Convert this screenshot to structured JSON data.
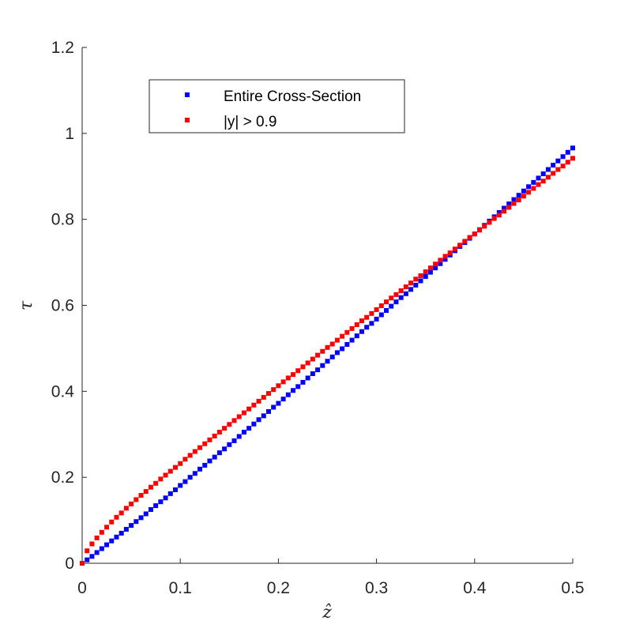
{
  "chart_data": {
    "type": "scatter",
    "title": "",
    "xlabel": "ẑ",
    "ylabel": "τ",
    "xlim": [
      0,
      0.5
    ],
    "ylim": [
      0,
      1.2
    ],
    "xticks": [
      "0",
      "0.1",
      "0.2",
      "0.3",
      "0.4",
      "0.5"
    ],
    "yticks": [
      "0",
      "0.2",
      "0.4",
      "0.6",
      "0.8",
      "1",
      "1.2"
    ],
    "x_tick_values": [
      0,
      0.1,
      0.2,
      0.3,
      0.4,
      0.5
    ],
    "y_tick_values": [
      0,
      0.2,
      0.4,
      0.6,
      0.8,
      1.0,
      1.2
    ],
    "grid": false,
    "box": "left-bottom",
    "legend_position": "top-center",
    "series": [
      {
        "name": "Entire Cross-Section",
        "color": "#0000ff",
        "marker": "square",
        "x": [
          0,
          0.005,
          0.01,
          0.015,
          0.02,
          0.025,
          0.03,
          0.035,
          0.04,
          0.045,
          0.05,
          0.055,
          0.06,
          0.065,
          0.07,
          0.075,
          0.08,
          0.085,
          0.09,
          0.095,
          0.1,
          0.105,
          0.11,
          0.115,
          0.12,
          0.125,
          0.13,
          0.135,
          0.14,
          0.145,
          0.15,
          0.155,
          0.16,
          0.165,
          0.17,
          0.175,
          0.18,
          0.185,
          0.19,
          0.195,
          0.2,
          0.205,
          0.21,
          0.215,
          0.22,
          0.225,
          0.23,
          0.235,
          0.24,
          0.245,
          0.25,
          0.255,
          0.26,
          0.265,
          0.27,
          0.275,
          0.28,
          0.285,
          0.29,
          0.295,
          0.3,
          0.305,
          0.31,
          0.315,
          0.32,
          0.325,
          0.33,
          0.335,
          0.34,
          0.345,
          0.35,
          0.355,
          0.36,
          0.365,
          0.37,
          0.375,
          0.38,
          0.385,
          0.39,
          0.395,
          0.4,
          0.405,
          0.41,
          0.415,
          0.42,
          0.425,
          0.43,
          0.435,
          0.44,
          0.445,
          0.45,
          0.455,
          0.46,
          0.465,
          0.47,
          0.475,
          0.48,
          0.485,
          0.49,
          0.495,
          0.5
        ],
        "y": [
          0,
          0.008,
          0.016,
          0.025,
          0.034,
          0.043,
          0.052,
          0.061,
          0.07,
          0.079,
          0.088,
          0.097,
          0.106,
          0.115,
          0.125,
          0.134,
          0.143,
          0.152,
          0.162,
          0.171,
          0.181,
          0.19,
          0.2,
          0.209,
          0.219,
          0.228,
          0.238,
          0.247,
          0.257,
          0.266,
          0.276,
          0.285,
          0.295,
          0.305,
          0.314,
          0.324,
          0.334,
          0.343,
          0.353,
          0.363,
          0.372,
          0.382,
          0.392,
          0.402,
          0.411,
          0.421,
          0.431,
          0.441,
          0.45,
          0.46,
          0.47,
          0.48,
          0.49,
          0.499,
          0.509,
          0.519,
          0.529,
          0.539,
          0.549,
          0.558,
          0.568,
          0.578,
          0.588,
          0.598,
          0.608,
          0.618,
          0.627,
          0.637,
          0.647,
          0.657,
          0.667,
          0.677,
          0.687,
          0.697,
          0.707,
          0.717,
          0.727,
          0.737,
          0.746,
          0.756,
          0.766,
          0.776,
          0.786,
          0.796,
          0.806,
          0.816,
          0.826,
          0.836,
          0.846,
          0.856,
          0.866,
          0.876,
          0.886,
          0.896,
          0.906,
          0.916,
          0.926,
          0.936,
          0.946,
          0.956,
          0.966
        ]
      },
      {
        "name": "|y| > 0.9",
        "color": "#ff0000",
        "marker": "square",
        "x": [
          0,
          0.005,
          0.01,
          0.015,
          0.02,
          0.025,
          0.03,
          0.035,
          0.04,
          0.045,
          0.05,
          0.055,
          0.06,
          0.065,
          0.07,
          0.075,
          0.08,
          0.085,
          0.09,
          0.095,
          0.1,
          0.105,
          0.11,
          0.115,
          0.12,
          0.125,
          0.13,
          0.135,
          0.14,
          0.145,
          0.15,
          0.155,
          0.16,
          0.165,
          0.17,
          0.175,
          0.18,
          0.185,
          0.19,
          0.195,
          0.2,
          0.205,
          0.21,
          0.215,
          0.22,
          0.225,
          0.23,
          0.235,
          0.24,
          0.245,
          0.25,
          0.255,
          0.26,
          0.265,
          0.27,
          0.275,
          0.28,
          0.285,
          0.29,
          0.295,
          0.3,
          0.305,
          0.31,
          0.315,
          0.32,
          0.325,
          0.33,
          0.335,
          0.34,
          0.345,
          0.35,
          0.355,
          0.36,
          0.365,
          0.37,
          0.375,
          0.38,
          0.385,
          0.39,
          0.395,
          0.4,
          0.405,
          0.41,
          0.415,
          0.42,
          0.425,
          0.43,
          0.435,
          0.44,
          0.445,
          0.45,
          0.455,
          0.46,
          0.465,
          0.47,
          0.475,
          0.48,
          0.485,
          0.49,
          0.495,
          0.5
        ],
        "y": [
          0,
          0.029,
          0.045,
          0.059,
          0.072,
          0.084,
          0.096,
          0.107,
          0.117,
          0.128,
          0.138,
          0.148,
          0.158,
          0.167,
          0.177,
          0.186,
          0.196,
          0.205,
          0.214,
          0.223,
          0.232,
          0.242,
          0.251,
          0.26,
          0.269,
          0.278,
          0.287,
          0.296,
          0.305,
          0.314,
          0.323,
          0.332,
          0.341,
          0.35,
          0.359,
          0.368,
          0.377,
          0.386,
          0.395,
          0.404,
          0.413,
          0.422,
          0.431,
          0.439,
          0.448,
          0.457,
          0.466,
          0.475,
          0.484,
          0.493,
          0.502,
          0.51,
          0.519,
          0.528,
          0.537,
          0.546,
          0.555,
          0.564,
          0.572,
          0.581,
          0.59,
          0.599,
          0.608,
          0.617,
          0.625,
          0.634,
          0.643,
          0.652,
          0.661,
          0.669,
          0.678,
          0.687,
          0.696,
          0.705,
          0.714,
          0.722,
          0.731,
          0.74,
          0.749,
          0.758,
          0.766,
          0.775,
          0.784,
          0.793,
          0.802,
          0.81,
          0.819,
          0.828,
          0.837,
          0.845,
          0.854,
          0.863,
          0.872,
          0.881,
          0.889,
          0.898,
          0.907,
          0.916,
          0.924,
          0.933,
          0.942
        ]
      }
    ]
  }
}
